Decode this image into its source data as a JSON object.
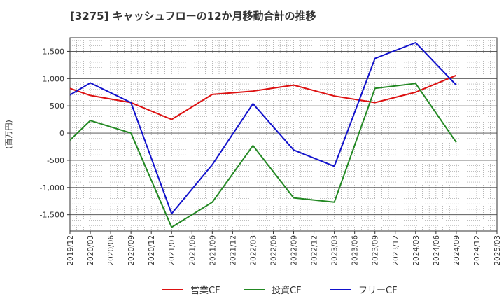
{
  "chart_data": {
    "type": "line",
    "title": "[3275]  キャッシュフローの12か月移動合計の推移",
    "ylabel": "(百万円)",
    "xlabel": "",
    "ylim": [
      -1800,
      1750
    ],
    "yticks": [
      1500,
      1000,
      500,
      0,
      -500,
      -1000,
      -1500
    ],
    "ytick_labels": [
      "1,500",
      "1,000",
      "500",
      "0",
      "-500",
      "-1,000",
      "-1,500"
    ],
    "categories": [
      "2019/12",
      "2020/03",
      "2020/06",
      "2020/09",
      "2020/12",
      "2021/03",
      "2021/06",
      "2021/09",
      "2021/12",
      "2022/03",
      "2022/06",
      "2022/09",
      "2022/12",
      "2023/03",
      "2023/06",
      "2023/09",
      "2023/12",
      "2024/03",
      "2024/06",
      "2024/09",
      "2024/12",
      "2025/03"
    ],
    "grid": true,
    "legend_position": "bottom",
    "series": [
      {
        "name": "営業CF",
        "color": "#dd1111",
        "values": [
          820,
          690,
          null,
          560,
          null,
          250,
          null,
          710,
          null,
          770,
          null,
          880,
          null,
          680,
          null,
          560,
          null,
          750,
          null,
          1060,
          null,
          null
        ]
      },
      {
        "name": "投資CF",
        "color": "#228822",
        "values": [
          -130,
          230,
          null,
          0,
          null,
          -1730,
          null,
          -1270,
          null,
          -230,
          null,
          -1190,
          null,
          -1270,
          null,
          820,
          null,
          910,
          null,
          -170,
          null,
          null
        ]
      },
      {
        "name": "フリーCF",
        "color": "#1111cc",
        "values": [
          700,
          920,
          null,
          560,
          null,
          -1480,
          null,
          -580,
          null,
          540,
          null,
          -310,
          null,
          -610,
          null,
          1370,
          null,
          1660,
          null,
          880,
          null,
          null
        ]
      }
    ]
  }
}
